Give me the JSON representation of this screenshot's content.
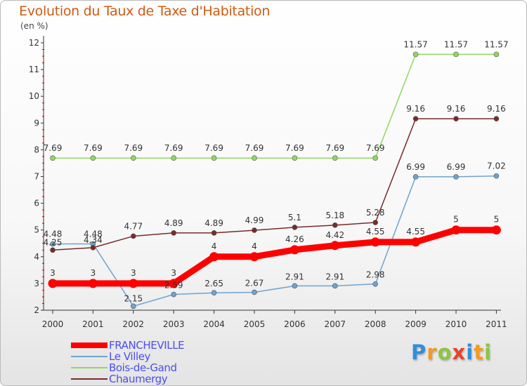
{
  "header": {
    "title": "Evolution du Taux de Taxe d'Habitation",
    "unit": "(en %)"
  },
  "chart_data": {
    "type": "line",
    "title": "Evolution du Taux de Taxe d'Habitation",
    "ylabel": "(en %)",
    "xlabel": "",
    "ylim": [
      2,
      12
    ],
    "yticks": [
      2,
      3,
      4,
      5,
      6,
      7,
      8,
      9,
      10,
      11,
      12
    ],
    "categories": [
      "2000",
      "2001",
      "2002",
      "2003",
      "2004",
      "2005",
      "2006",
      "2007",
      "2008",
      "2009",
      "2010",
      "2011"
    ],
    "grid": false,
    "legend_position": "bottom-left",
    "series": [
      {
        "name": "FRANCHEVILLE",
        "color": "#ff0000",
        "values": [
          3,
          3,
          3,
          3,
          4,
          4,
          4.26,
          4.42,
          4.55,
          4.55,
          5,
          5
        ],
        "labels": [
          "3",
          "3",
          "3",
          "3",
          "4",
          "4",
          "4.26",
          "4.42",
          "4.55",
          "4.55",
          "5",
          "5"
        ]
      },
      {
        "name": "Le Villey",
        "color": "#6fa3cf",
        "values": [
          4.48,
          4.48,
          2.15,
          2.59,
          2.65,
          2.67,
          2.91,
          2.91,
          2.98,
          6.99,
          6.99,
          7.02
        ],
        "labels": [
          "4.48",
          "4.48",
          "2.15",
          "2.59",
          "2.65",
          "2.67",
          "2.91",
          "2.91",
          "2.98",
          "6.99",
          "6.99",
          "7.02"
        ]
      },
      {
        "name": "Bois-de-Gand",
        "color": "#90d860",
        "values": [
          7.69,
          7.69,
          7.69,
          7.69,
          7.69,
          7.69,
          7.69,
          7.69,
          7.69,
          11.57,
          11.57,
          11.57
        ],
        "labels": [
          "7.69",
          "7.69",
          "7.69",
          "7.69",
          "7.69",
          "7.69",
          "7.69",
          "7.69",
          "7.69",
          "11.57",
          "11.57",
          "11.57"
        ]
      },
      {
        "name": "Chaumergy",
        "color": "#7a2a2a",
        "values": [
          4.25,
          4.34,
          4.77,
          4.89,
          4.89,
          4.99,
          5.1,
          5.18,
          5.28,
          9.16,
          9.16,
          9.16
        ],
        "labels": [
          "4.25",
          "4.34",
          "4.77",
          "4.89",
          "4.89",
          "4.99",
          "5.1",
          "5.18",
          "5.28",
          "9.16",
          "9.16",
          "9.16"
        ]
      }
    ]
  },
  "logo": {
    "letters": [
      {
        "char": "P",
        "color": "#2f8fd8"
      },
      {
        "char": "r",
        "color": "#f39a1f"
      },
      {
        "char": "o",
        "color": "#8cc63f"
      },
      {
        "char": "x",
        "color": "#e8412c"
      },
      {
        "char": "i",
        "color": "#2f8fd8"
      },
      {
        "char": "t",
        "color": "#f39a1f"
      },
      {
        "char": "i",
        "color": "#8cc63f"
      }
    ]
  }
}
